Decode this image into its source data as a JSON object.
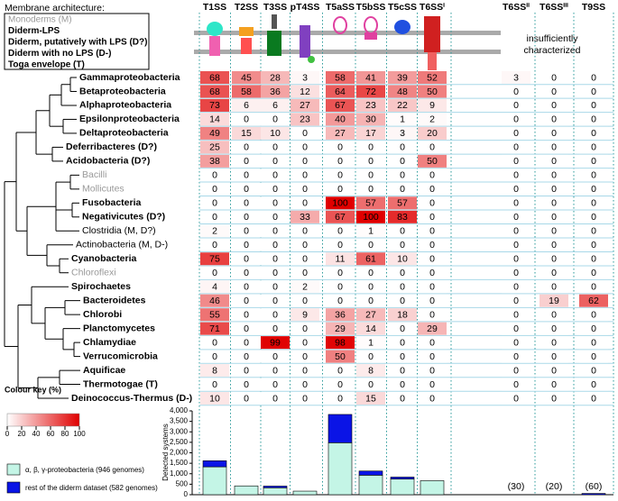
{
  "membrane_legend": {
    "title": "Membrane architecture:",
    "items": [
      {
        "text": "Monoderms (M)",
        "color": "#999999",
        "bold": false
      },
      {
        "text": "Diderm-LPS",
        "color": "#000000",
        "bold": true
      },
      {
        "text": "Diderm, putatively with LPS (D?)",
        "color": "#000000",
        "bold": true
      },
      {
        "text": "Diderm with no LPS (D-)",
        "color": "#000000",
        "bold": true
      },
      {
        "text": "Toga envelope (T)",
        "color": "#000000",
        "bold": true
      }
    ]
  },
  "note_lines": [
    "insufficiently",
    "characterized"
  ],
  "chart_data": [
    {
      "type": "heatmap",
      "categories": [
        "T1SS",
        "T2SS",
        "T3SS",
        "pT4SS",
        "T5aSS",
        "T5bSS",
        "T5cSS",
        "T6SSⁱ",
        "T6SSⁱⁱ",
        "T6SSⁱⁱⁱ",
        "T9SS"
      ],
      "rows": [
        {
          "name": "Gammaproteobacteria",
          "color": "#000000",
          "bold": true,
          "values": [
            68,
            45,
            28,
            3,
            58,
            41,
            39,
            52,
            3,
            0,
            0
          ]
        },
        {
          "name": "Betaproteobacteria",
          "color": "#000000",
          "bold": true,
          "values": [
            68,
            58,
            36,
            12,
            64,
            72,
            48,
            50,
            0,
            0,
            0
          ]
        },
        {
          "name": "Alphaproteobacteria",
          "color": "#000000",
          "bold": true,
          "values": [
            73,
            6,
            6,
            27,
            67,
            23,
            22,
            9,
            0,
            0,
            0
          ]
        },
        {
          "name": "Epsilonproteobacteria",
          "color": "#000000",
          "bold": true,
          "values": [
            14,
            0,
            0,
            23,
            40,
            30,
            1,
            2,
            0,
            0,
            0
          ]
        },
        {
          "name": "Deltaproteobacteria",
          "color": "#000000",
          "bold": true,
          "values": [
            49,
            15,
            10,
            0,
            27,
            17,
            3,
            20,
            0,
            0,
            0
          ]
        },
        {
          "name": "Deferribacteres (D?)",
          "color": "#000000",
          "bold": true,
          "values": [
            25,
            0,
            0,
            0,
            0,
            0,
            0,
            0,
            0,
            0,
            0
          ]
        },
        {
          "name": "Acidobacteria (D?)",
          "color": "#000000",
          "bold": true,
          "values": [
            38,
            0,
            0,
            0,
            0,
            0,
            0,
            50,
            0,
            0,
            0
          ]
        },
        {
          "name": "Bacilli",
          "color": "#999999",
          "bold": false,
          "values": [
            0,
            0,
            0,
            0,
            0,
            0,
            0,
            0,
            0,
            0,
            0
          ]
        },
        {
          "name": "Mollicutes",
          "color": "#999999",
          "bold": false,
          "values": [
            0,
            0,
            0,
            0,
            0,
            0,
            0,
            0,
            0,
            0,
            0
          ]
        },
        {
          "name": "Fusobacteria",
          "color": "#000000",
          "bold": true,
          "values": [
            0,
            0,
            0,
            0,
            100,
            57,
            57,
            0,
            0,
            0,
            0
          ]
        },
        {
          "name": "Negativicutes (D?)",
          "color": "#000000",
          "bold": true,
          "values": [
            0,
            0,
            0,
            33,
            67,
            100,
            83,
            0,
            0,
            0,
            0
          ]
        },
        {
          "name": "Clostridia (M, D?)",
          "color": "#000000",
          "bold": false,
          "values": [
            2,
            0,
            0,
            0,
            0,
            1,
            0,
            0,
            0,
            0,
            0
          ]
        },
        {
          "name": "Actinobacteria (M, D-)",
          "color": "#000000",
          "bold": false,
          "values": [
            0,
            0,
            0,
            0,
            0,
            0,
            0,
            0,
            0,
            0,
            0
          ]
        },
        {
          "name": "Cyanobacteria",
          "color": "#000000",
          "bold": true,
          "values": [
            75,
            0,
            0,
            0,
            11,
            61,
            10,
            0,
            0,
            0,
            0
          ]
        },
        {
          "name": "Chloroflexi",
          "color": "#999999",
          "bold": false,
          "values": [
            0,
            0,
            0,
            0,
            0,
            0,
            0,
            0,
            0,
            0,
            0
          ]
        },
        {
          "name": "Spirochaetes",
          "color": "#000000",
          "bold": true,
          "values": [
            4,
            0,
            0,
            2,
            0,
            0,
            0,
            0,
            0,
            0,
            0
          ]
        },
        {
          "name": "Bacteroidetes",
          "color": "#000000",
          "bold": true,
          "values": [
            46,
            0,
            0,
            0,
            0,
            0,
            0,
            0,
            0,
            19,
            62
          ]
        },
        {
          "name": "Chlorobi",
          "color": "#000000",
          "bold": true,
          "values": [
            55,
            0,
            0,
            9,
            36,
            27,
            18,
            0,
            0,
            0,
            0
          ]
        },
        {
          "name": "Planctomycetes",
          "color": "#000000",
          "bold": true,
          "values": [
            71,
            0,
            0,
            0,
            29,
            14,
            0,
            29,
            0,
            0,
            0
          ]
        },
        {
          "name": "Chlamydiae",
          "color": "#000000",
          "bold": true,
          "values": [
            0,
            0,
            99,
            0,
            98,
            1,
            0,
            0,
            0,
            0,
            0
          ]
        },
        {
          "name": "Verrucomicrobia",
          "color": "#000000",
          "bold": true,
          "values": [
            0,
            0,
            0,
            0,
            50,
            0,
            0,
            0,
            0,
            0,
            0
          ]
        },
        {
          "name": "Aquificae",
          "color": "#000000",
          "bold": true,
          "values": [
            8,
            0,
            0,
            0,
            0,
            8,
            0,
            0,
            0,
            0,
            0
          ]
        },
        {
          "name": "Thermotogae (T)",
          "color": "#000000",
          "bold": true,
          "values": [
            0,
            0,
            0,
            0,
            0,
            0,
            0,
            0,
            0,
            0,
            0
          ]
        },
        {
          "name": "Deinococcus-Thermus (D-)",
          "color": "#000000",
          "bold": true,
          "values": [
            10,
            0,
            0,
            0,
            0,
            15,
            0,
            0,
            0,
            0,
            0
          ]
        }
      ],
      "colour_key": {
        "title": "Colour key (%)",
        "range": [
          0,
          100
        ],
        "ticks": [
          0,
          20,
          40,
          60,
          80,
          100
        ],
        "colors": [
          "#ffffff",
          "#e00000"
        ]
      }
    },
    {
      "type": "bar",
      "stacked": true,
      "ylabel": "Detected systems",
      "ylim": [
        0,
        4000
      ],
      "yticks": [
        0,
        500,
        {
          "value": 1000,
          "label": "1,000"
        },
        {
          "value": 1500,
          "label": "1,500"
        },
        {
          "value": 2000,
          "label": "2,000"
        },
        {
          "value": 2500,
          "label": "2,500"
        },
        {
          "value": 3000,
          "label": "3,000"
        },
        {
          "value": 3500,
          "label": "3,500"
        },
        {
          "value": 4000,
          "label": "4,000"
        }
      ],
      "series": [
        {
          "name": "α, β, γ-proteobacteria (946 genomes)",
          "color": "#c4f5e6",
          "values": [
            1330,
            420,
            330,
            170,
            2480,
            930,
            750,
            670,
            null,
            null,
            0
          ]
        },
        {
          "name": "rest of the diderm dataset (582 genomes)",
          "color": "#0a14e6",
          "values": [
            290,
            0,
            80,
            0,
            1350,
            200,
            90,
            0,
            null,
            null,
            60
          ]
        }
      ],
      "annotations": [
        {
          "category": "T6SSⁱⁱ",
          "text": "(30)"
        },
        {
          "category": "T6SSⁱⁱⁱ",
          "text": "(20)"
        },
        {
          "category": "T9SS",
          "text": "(60)"
        }
      ]
    }
  ]
}
